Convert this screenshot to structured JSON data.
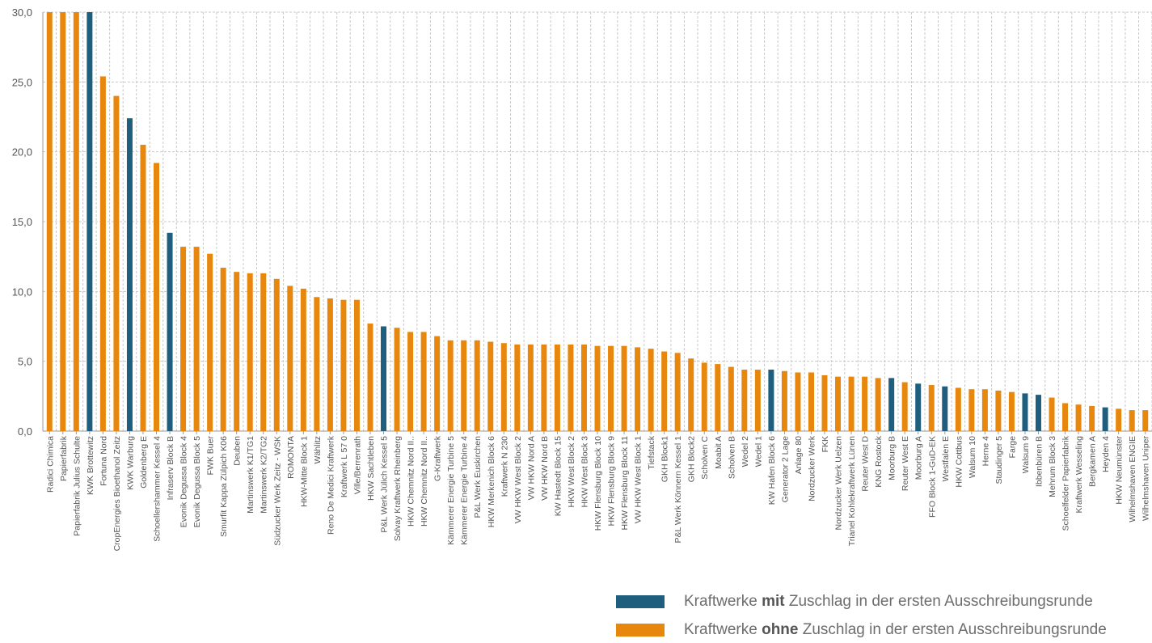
{
  "colors": {
    "with": "#1f5f7d",
    "without": "#e8870e",
    "grid": "#c8c8c8",
    "axis": "#9a9a9a",
    "text": "#555555"
  },
  "legend": {
    "with_pre": "Kraftwerke ",
    "with_bold": "mit",
    "with_post": " Zuschlag in der ersten Ausschreibungsrunde",
    "without_pre": "Kraftwerke ",
    "without_bold": "ohne",
    "without_post": " Zuschlag in der ersten Ausschreibungsrunde"
  },
  "chart_data": {
    "type": "bar",
    "title": "",
    "xlabel": "",
    "ylabel": "",
    "ylim": [
      0,
      30
    ],
    "yticks": [
      "0,0",
      "5,0",
      "10,0",
      "15,0",
      "20,0",
      "25,0",
      "30,0"
    ],
    "grid": true,
    "legend_position": "bottom-right",
    "categories": [
      "Radici Chimica",
      "Papierfabrik",
      "Papierfabrik Julius Schulte",
      "KWK Brottewitz",
      "Fortuna Nord",
      "CropEnergies Bioethanol Zeitz",
      "KWK Warburg",
      "Goldenberg E",
      "Schoellershammer Kessel 4",
      "Infraserv Block B",
      "Evonik Degussa Block 4",
      "Evonik Degussa Block 5",
      "FWK Buer",
      "Smurfit Kappa Zülpich K06",
      "Deuben",
      "Martinswerk K1/TG1",
      "Martinswerk K2/TG2",
      "Südzucker Werk Zeitz - WSK",
      "ROMONTA",
      "HKW-Mitte Block 1",
      "Wählitz",
      "Reno De Medici Kraftwerk",
      "Kraftwerk L 57 0",
      "Ville/Berrenrath",
      "HKW Sachtleben",
      "P&L Werk Jülich Kessel 5",
      "Solvay Kraftwerk Rheinberg",
      "HKW Chemnitz Nord II..",
      "HKW Chemnitz Nord II..",
      "G-Kraftwerk",
      "Kämmerer Energie Turbine 5",
      "Kämmerer Energie Turbine 4",
      "P&L Werk Euskirchen",
      "HKW Merkenich Block 6",
      "Kraftwerk N 230",
      "VW HKW West Block 2",
      "VW HKW Nord A",
      "VW HKW Nord B",
      "KW Hastedt Block 15",
      "HKW West Block 2",
      "HKW West Block 3",
      "HKW Flensburg Block 10",
      "HKW Flensburg Block 9",
      "HKW Flensburg Block 11",
      "VW HKW West Block 1",
      "Tiefstack",
      "GKH Block1",
      "P&L Werk Könnern Kessel 1",
      "GKH Block2",
      "Scholven C",
      "Moabit A",
      "Scholven B",
      "Wedel 2",
      "Wedel 1",
      "KW Hafen Block 6",
      "Generator 2 Lage",
      "Anlage 80",
      "Nordzucker Werk",
      "FKK",
      "Nordzucker Werk Uelzen",
      "Trianel Kohlekraftwerk Lünen",
      "Reuter West D",
      "KNG Rostock",
      "Moorburg B",
      "Reuter West E",
      "Moorburg A",
      "FFO Block 1-GuD-EK",
      "Westfalen E",
      "HKW Cottbus",
      "Walsum 10",
      "Herne 4",
      "Staudinger 5",
      "Farge",
      "Walsum 9",
      "Ibbenbüren B",
      "Mehrum Block 3",
      "Schoelfelder Papierfabrik",
      "Kraftwerk Wesseling",
      "Bergkamen A",
      "Heyden 4",
      "HKW Neumünster",
      "Wilhelmshaven ENGIE",
      "Wilhelmshaven Uniper"
    ],
    "values": [
      30,
      30,
      30,
      30,
      25.4,
      24,
      22.4,
      20.5,
      19.2,
      14.2,
      13.2,
      13.2,
      12.7,
      11.7,
      11.4,
      11.3,
      11.3,
      10.9,
      10.4,
      10.2,
      9.6,
      9.5,
      9.4,
      9.4,
      7.7,
      7.5,
      7.4,
      7.1,
      7.1,
      6.8,
      6.5,
      6.5,
      6.5,
      6.4,
      6.3,
      6.2,
      6.2,
      6.2,
      6.2,
      6.2,
      6.2,
      6.1,
      6.1,
      6.1,
      6.0,
      5.9,
      5.7,
      5.6,
      5.2,
      4.9,
      4.8,
      4.6,
      4.4,
      4.4,
      4.4,
      4.3,
      4.2,
      4.2,
      4.0,
      3.9,
      3.9,
      3.9,
      3.8,
      3.8,
      3.5,
      3.4,
      3.3,
      3.2,
      3.1,
      3.0,
      3.0,
      2.9,
      2.8,
      2.7,
      2.6,
      2.4,
      2.0,
      1.9,
      1.8,
      1.7,
      1.6,
      1.5,
      1.5
    ],
    "series_colors": [
      "without",
      "without",
      "without",
      "with",
      "without",
      "without",
      "with",
      "without",
      "without",
      "with",
      "without",
      "without",
      "without",
      "without",
      "without",
      "without",
      "without",
      "without",
      "without",
      "without",
      "without",
      "without",
      "without",
      "without",
      "without",
      "with",
      "without",
      "without",
      "without",
      "without",
      "without",
      "without",
      "without",
      "without",
      "without",
      "without",
      "without",
      "without",
      "without",
      "without",
      "without",
      "without",
      "without",
      "without",
      "without",
      "without",
      "without",
      "without",
      "without",
      "without",
      "without",
      "without",
      "without",
      "without",
      "with",
      "without",
      "without",
      "without",
      "without",
      "without",
      "without",
      "without",
      "without",
      "with",
      "without",
      "with",
      "without",
      "with",
      "without",
      "without",
      "without",
      "without",
      "without",
      "with",
      "with",
      "without",
      "without",
      "without",
      "without",
      "with",
      "without",
      "without",
      "without"
    ]
  }
}
